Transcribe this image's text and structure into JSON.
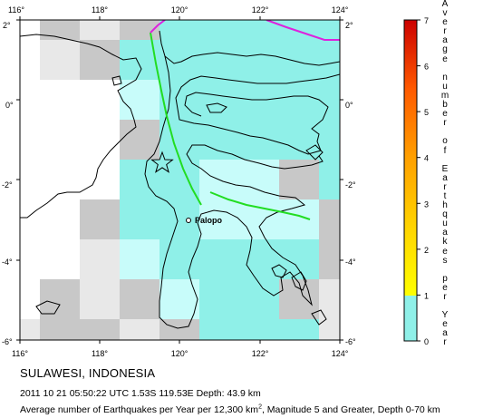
{
  "map": {
    "lon_ticks": [
      "116°",
      "118°",
      "120°",
      "122°",
      "124°"
    ],
    "lat_ticks": [
      "2°",
      "0°",
      "-2°",
      "-4°",
      "-6°"
    ],
    "city_label": "Palopo",
    "colors": {
      "land_outline": "#000000",
      "plate_boundary_green": "#22dd22",
      "plate_boundary_magenta": "#dd22dd",
      "grid_gray": "#c8c8c8",
      "grid_light_gray": "#e8e8e8",
      "rate_low": "#8ff0e8",
      "rate_lighter": "#c8fcfa"
    }
  },
  "legend": {
    "title": "Average number of Earthquakes per Year",
    "ticks": [
      "7",
      "6",
      "5",
      "4",
      "3",
      "2",
      "1",
      "0"
    ],
    "max": 7
  },
  "caption": {
    "region": "SULAWESI, INDONESIA",
    "event": "2011 10 21 05:50:22 UTC 1.53S 119.53E Depth: 43.9 km",
    "footer_pre": "Average number of Earthquakes per Year per 12,300 km",
    "footer_sup": "2",
    "footer_post": ", Magnitude 5 and Greater, Depth 0-70 km"
  }
}
